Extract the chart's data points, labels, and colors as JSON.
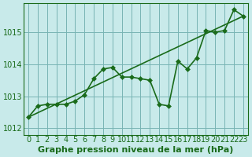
{
  "title": "Graphe pression niveau de la mer (hPa)",
  "background_color": "#c8eaea",
  "grid_color": "#78b4b4",
  "line_color": "#1a6b1a",
  "marker_color": "#1a6b1a",
  "ylabel_color": "#1a6b1a",
  "x_values": [
    0,
    1,
    2,
    3,
    4,
    5,
    6,
    7,
    8,
    9,
    10,
    11,
    12,
    13,
    14,
    15,
    16,
    17,
    18,
    19,
    20,
    21,
    22,
    23
  ],
  "y_values": [
    1012.35,
    1012.7,
    1012.75,
    1012.75,
    1012.75,
    1012.85,
    1013.05,
    1013.55,
    1013.85,
    1013.9,
    1013.6,
    1013.6,
    1013.55,
    1013.5,
    1012.75,
    1012.7,
    1014.1,
    1013.85,
    1014.2,
    1015.05,
    1015.0,
    1015.05,
    1015.7,
    1015.5
  ],
  "trend_x": [
    0,
    23
  ],
  "trend_y": [
    1012.35,
    1015.5
  ],
  "xlim": [
    -0.5,
    23.5
  ],
  "ylim": [
    1011.8,
    1015.9
  ],
  "yticks": [
    1012,
    1013,
    1014,
    1015
  ],
  "xticks": [
    0,
    1,
    2,
    3,
    4,
    5,
    6,
    7,
    8,
    9,
    10,
    11,
    12,
    13,
    14,
    15,
    16,
    17,
    18,
    19,
    20,
    21,
    22,
    23
  ],
  "xlabel": "Graphe pression niveau de la mer (hPa)",
  "title_fontsize": 9,
  "tick_fontsize": 7,
  "line_width": 1.2,
  "marker_size": 3
}
